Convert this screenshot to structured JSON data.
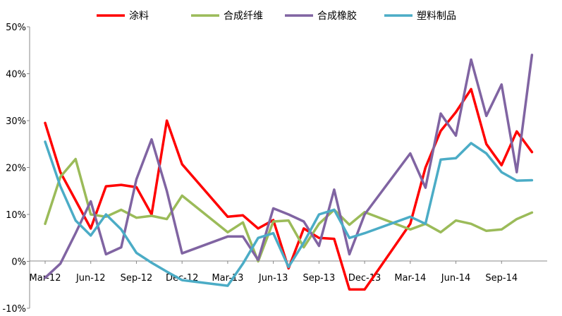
{
  "chart_data": {
    "type": "line",
    "title": "",
    "xlabel": "",
    "ylabel": "",
    "grid": false,
    "legend_position": "top",
    "ylim": [
      -0.1,
      0.5
    ],
    "y_ticks": [
      -0.1,
      0.0,
      0.1,
      0.2,
      0.3,
      0.4,
      0.5
    ],
    "y_tick_labels": [
      "-10%",
      "0%",
      "10%",
      "20%",
      "30%",
      "40%",
      "50%"
    ],
    "x": [
      "2012-03",
      "2012-04",
      "2012-05",
      "2012-06",
      "2012-07",
      "2012-08",
      "2012-09",
      "2012-10",
      "2012-11",
      "2012-12",
      "2013-01",
      "2013-02",
      "2013-03",
      "2013-04",
      "2013-05",
      "2013-06",
      "2013-07",
      "2013-08",
      "2013-09",
      "2013-10",
      "2013-11",
      "2013-12",
      "2014-01",
      "2014-02",
      "2014-03",
      "2014-04",
      "2014-05",
      "2014-06",
      "2014-07",
      "2014-08",
      "2014-09",
      "2014-10",
      "2014-11",
      "2014-12"
    ],
    "x_tick_labels": [
      {
        "at": "2012-03",
        "label": "Mar-12"
      },
      {
        "at": "2012-06",
        "label": "Jun-12"
      },
      {
        "at": "2012-09",
        "label": "Sep-12"
      },
      {
        "at": "2012-12",
        "label": "Dec-12"
      },
      {
        "at": "2013-03",
        "label": "Mar-13"
      },
      {
        "at": "2013-06",
        "label": "Jun-13"
      },
      {
        "at": "2013-09",
        "label": "Sep-13"
      },
      {
        "at": "2013-12",
        "label": "Dec-13"
      },
      {
        "at": "2014-03",
        "label": "Mar-14"
      },
      {
        "at": "2014-06",
        "label": "Jun-14"
      },
      {
        "at": "2014-09",
        "label": "Sep-14"
      }
    ],
    "series": [
      {
        "name": "涂料",
        "color": "#FF0000",
        "values": [
          0.295,
          0.19,
          0.13,
          0.07,
          0.16,
          0.163,
          0.158,
          0.1,
          0.3,
          0.207,
          null,
          null,
          0.095,
          0.098,
          0.07,
          0.088,
          -0.015,
          0.07,
          0.05,
          0.048,
          -0.06,
          -0.06,
          null,
          null,
          0.08,
          0.2,
          0.278,
          0.318,
          0.367,
          0.25,
          0.205,
          0.277,
          0.233,
          null
        ]
      },
      {
        "name": "合成纤维",
        "color": "#9BBB59",
        "values": [
          0.08,
          0.18,
          0.218,
          0.1,
          0.095,
          0.11,
          0.093,
          0.097,
          0.09,
          0.14,
          null,
          null,
          0.062,
          0.083,
          0.0,
          0.085,
          0.087,
          0.03,
          0.08,
          0.11,
          0.078,
          0.105,
          null,
          null,
          0.068,
          0.08,
          0.062,
          0.087,
          0.08,
          0.065,
          0.068,
          0.09,
          0.104,
          null
        ]
      },
      {
        "name": "合成橡胶",
        "color": "#8064A2",
        "values": [
          -0.035,
          -0.005,
          0.06,
          0.128,
          0.015,
          0.03,
          0.175,
          0.26,
          0.15,
          0.017,
          null,
          null,
          0.053,
          0.053,
          0.003,
          0.113,
          0.1,
          0.085,
          0.033,
          0.153,
          0.015,
          0.1,
          null,
          null,
          0.23,
          0.157,
          0.315,
          0.268,
          0.43,
          0.31,
          0.377,
          0.19,
          0.44,
          null
        ]
      },
      {
        "name": "塑料制品",
        "color": "#4BACC6",
        "values": [
          0.255,
          0.16,
          0.087,
          0.055,
          0.1,
          0.068,
          0.018,
          -0.003,
          -0.022,
          -0.04,
          null,
          null,
          -0.052,
          -0.005,
          0.05,
          0.06,
          -0.012,
          0.04,
          0.1,
          0.11,
          0.05,
          0.06,
          null,
          null,
          0.095,
          0.08,
          0.217,
          0.22,
          0.252,
          0.23,
          0.19,
          0.172,
          0.173,
          null
        ]
      }
    ]
  }
}
